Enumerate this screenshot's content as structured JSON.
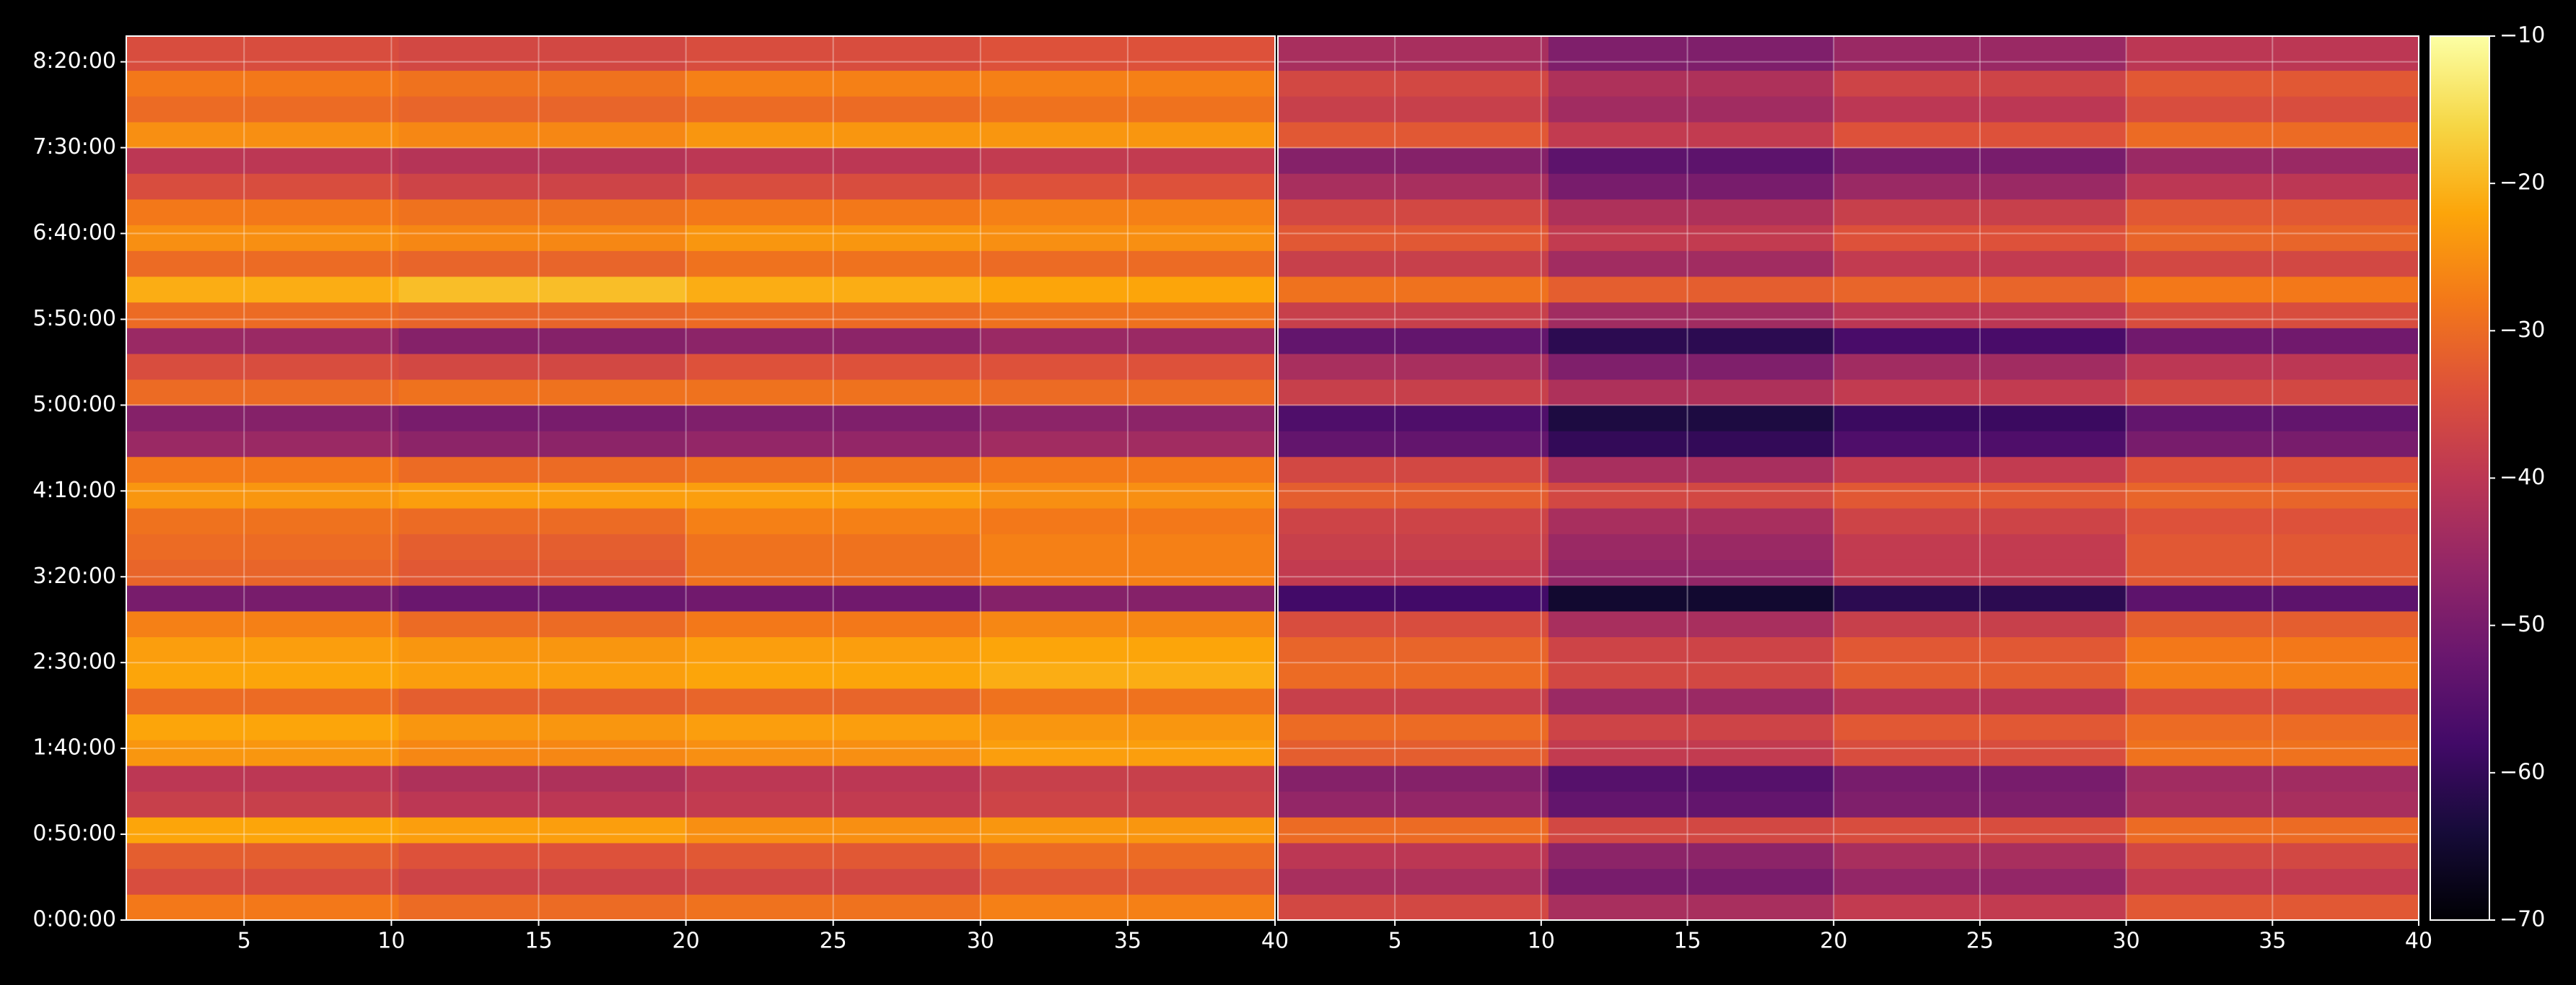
{
  "chart_data": {
    "type": "heatmap",
    "colormap": "inferno",
    "grid": true,
    "x": [
      5.5,
      15,
      25,
      35
    ],
    "y": [
      450,
      1350,
      2250,
      3150,
      4050,
      4950,
      5850,
      6750,
      7650,
      8550,
      9450,
      10350,
      11250,
      12150,
      13050,
      13950,
      14850,
      15750,
      16650,
      17550,
      18450,
      19350,
      20250,
      21150,
      22050,
      22950,
      23850,
      24750,
      25650,
      26550,
      27450,
      28350,
      29250,
      30150
    ],
    "xlim": [
      1,
      40
    ],
    "xticks": [
      5,
      10,
      15,
      20,
      25,
      30,
      35,
      40
    ],
    "ylim": [
      0,
      30900
    ],
    "yticks": [
      {
        "value": 0,
        "label": "0:00:00"
      },
      {
        "value": 3000,
        "label": "0:50:00"
      },
      {
        "value": 6000,
        "label": "1:40:00"
      },
      {
        "value": 9000,
        "label": "2:30:00"
      },
      {
        "value": 12000,
        "label": "3:20:00"
      },
      {
        "value": 15000,
        "label": "4:10:00"
      },
      {
        "value": 18000,
        "label": "5:00:00"
      },
      {
        "value": 21000,
        "label": "5:50:00"
      },
      {
        "value": 24000,
        "label": "6:40:00"
      },
      {
        "value": 27000,
        "label": "7:30:00"
      },
      {
        "value": 30000,
        "label": "8:20:00"
      }
    ],
    "colorbar": {
      "lim": [
        -70,
        -10
      ],
      "ticks": [
        {
          "value": -70,
          "label": "−70"
        },
        {
          "value": -60,
          "label": "−60"
        },
        {
          "value": -50,
          "label": "−50"
        },
        {
          "value": -40,
          "label": "−40"
        },
        {
          "value": -30,
          "label": "−30"
        },
        {
          "value": -20,
          "label": "−20"
        },
        {
          "value": -10,
          "label": "−10"
        }
      ]
    },
    "panels": [
      {
        "z": [
          [
            -28,
            -30,
            -29,
            -27
          ],
          [
            -35,
            -37,
            -36,
            -33
          ],
          [
            -32,
            -34,
            -33,
            -30
          ],
          [
            -22,
            -23,
            -25,
            -24
          ],
          [
            -38,
            -40,
            -39,
            -37
          ],
          [
            -40,
            -42,
            -40,
            -38
          ],
          [
            -24,
            -26,
            -25,
            -23
          ],
          [
            -22,
            -24,
            -23,
            -24
          ],
          [
            -30,
            -32,
            -31,
            -29
          ],
          [
            -22,
            -23,
            -22,
            -21
          ],
          [
            -23,
            -24,
            -23,
            -22
          ],
          [
            -27,
            -30,
            -28,
            -26
          ],
          [
            -50,
            -52,
            -51,
            -48
          ],
          [
            -31,
            -33,
            -29,
            -27
          ],
          [
            -30,
            -32,
            -29,
            -27
          ],
          [
            -29,
            -30,
            -27,
            -28
          ],
          [
            -24,
            -23,
            -23,
            -25
          ],
          [
            -28,
            -30,
            -29,
            -28
          ],
          [
            -45,
            -47,
            -46,
            -44
          ],
          [
            -48,
            -50,
            -49,
            -47
          ],
          [
            -30,
            -29,
            -29,
            -30
          ],
          [
            -35,
            -36,
            -34,
            -34
          ],
          [
            -45,
            -48,
            -47,
            -45
          ],
          [
            -30,
            -31,
            -30,
            -29
          ],
          [
            -21,
            -19,
            -21,
            -22
          ],
          [
            -30,
            -31,
            -29,
            -30
          ],
          [
            -25,
            -26,
            -24,
            -25
          ],
          [
            -28,
            -29,
            -28,
            -27
          ],
          [
            -35,
            -37,
            -35,
            -34
          ],
          [
            -40,
            -41,
            -40,
            -39
          ],
          [
            -25,
            -26,
            -24,
            -24
          ],
          [
            -30,
            -31,
            -30,
            -29
          ],
          [
            -28,
            -29,
            -27,
            -27
          ],
          [
            -35,
            -36,
            -35,
            -34
          ]
        ]
      },
      {
        "z": [
          [
            -36,
            -43,
            -39,
            -33
          ],
          [
            -43,
            -50,
            -46,
            -39
          ],
          [
            -40,
            -47,
            -43,
            -36
          ],
          [
            -30,
            -36,
            -35,
            -30
          ],
          [
            -46,
            -53,
            -49,
            -43
          ],
          [
            -48,
            -55,
            -50,
            -44
          ],
          [
            -32,
            -39,
            -35,
            -29
          ],
          [
            -30,
            -37,
            -33,
            -30
          ],
          [
            -38,
            -45,
            -41,
            -35
          ],
          [
            -30,
            -36,
            -32,
            -27
          ],
          [
            -31,
            -37,
            -33,
            -28
          ],
          [
            -35,
            -43,
            -38,
            -32
          ],
          [
            -58,
            -65,
            -61,
            -54
          ],
          [
            -39,
            -46,
            -39,
            -33
          ],
          [
            -38,
            -45,
            -39,
            -33
          ],
          [
            -37,
            -43,
            -37,
            -34
          ],
          [
            -32,
            -36,
            -33,
            -31
          ],
          [
            -36,
            -43,
            -39,
            -34
          ],
          [
            -53,
            -60,
            -56,
            -50
          ],
          [
            -56,
            -63,
            -59,
            -53
          ],
          [
            -38,
            -42,
            -39,
            -36
          ],
          [
            -43,
            -49,
            -44,
            -40
          ],
          [
            -53,
            -61,
            -57,
            -51
          ],
          [
            -38,
            -44,
            -40,
            -35
          ],
          [
            -29,
            -32,
            -31,
            -28
          ],
          [
            -38,
            -44,
            -39,
            -36
          ],
          [
            -33,
            -39,
            -34,
            -31
          ],
          [
            -36,
            -42,
            -38,
            -33
          ],
          [
            -43,
            -50,
            -45,
            -40
          ],
          [
            -48,
            -54,
            -50,
            -45
          ],
          [
            -33,
            -39,
            -34,
            -30
          ],
          [
            -38,
            -44,
            -40,
            -35
          ],
          [
            -36,
            -42,
            -37,
            -33
          ],
          [
            -43,
            -49,
            -45,
            -40
          ]
        ]
      }
    ]
  }
}
